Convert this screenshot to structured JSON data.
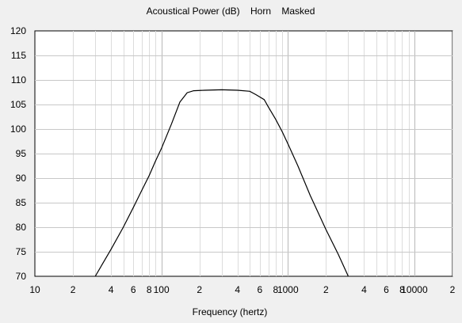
{
  "chart_data": {
    "type": "line",
    "title": "Acoustical Power (dB)    Horn    Masked",
    "xlabel": "Frequency (hertz)",
    "ylabel": "",
    "x_scale": "log",
    "xlim": [
      10,
      20000
    ],
    "ylim": [
      70,
      120
    ],
    "y_ticks": [
      70,
      75,
      80,
      85,
      90,
      95,
      100,
      105,
      110,
      115,
      120
    ],
    "x_tick_labels": [
      {
        "value": 10,
        "label": "10"
      },
      {
        "value": 20,
        "label": "2"
      },
      {
        "value": 40,
        "label": "4"
      },
      {
        "value": 60,
        "label": "6"
      },
      {
        "value": 80,
        "label": "8"
      },
      {
        "value": 100,
        "label": "100"
      },
      {
        "value": 200,
        "label": "2"
      },
      {
        "value": 400,
        "label": "4"
      },
      {
        "value": 600,
        "label": "6"
      },
      {
        "value": 800,
        "label": "8"
      },
      {
        "value": 1000,
        "label": "1000"
      },
      {
        "value": 2000,
        "label": "2"
      },
      {
        "value": 4000,
        "label": "4"
      },
      {
        "value": 6000,
        "label": "6"
      },
      {
        "value": 8000,
        "label": "8"
      },
      {
        "value": 10000,
        "label": "10000"
      },
      {
        "value": 20000,
        "label": "2"
      }
    ],
    "grid": true,
    "series": [
      {
        "color": "#000000",
        "points": [
          [
            30,
            70
          ],
          [
            40,
            75.5
          ],
          [
            50,
            80
          ],
          [
            60,
            84
          ],
          [
            70,
            87.5
          ],
          [
            80,
            90.5
          ],
          [
            90,
            93.5
          ],
          [
            100,
            96
          ],
          [
            120,
            101
          ],
          [
            140,
            105.5
          ],
          [
            160,
            107.4
          ],
          [
            180,
            107.8
          ],
          [
            220,
            107.9
          ],
          [
            300,
            108
          ],
          [
            400,
            107.9
          ],
          [
            500,
            107.7
          ],
          [
            560,
            107
          ],
          [
            650,
            106
          ],
          [
            700,
            104.5
          ],
          [
            800,
            102
          ],
          [
            900,
            99.5
          ],
          [
            1000,
            97
          ],
          [
            1200,
            92.5
          ],
          [
            1500,
            86.5
          ],
          [
            2000,
            79.5
          ],
          [
            2500,
            74.5
          ],
          [
            3000,
            70
          ]
        ]
      }
    ]
  }
}
